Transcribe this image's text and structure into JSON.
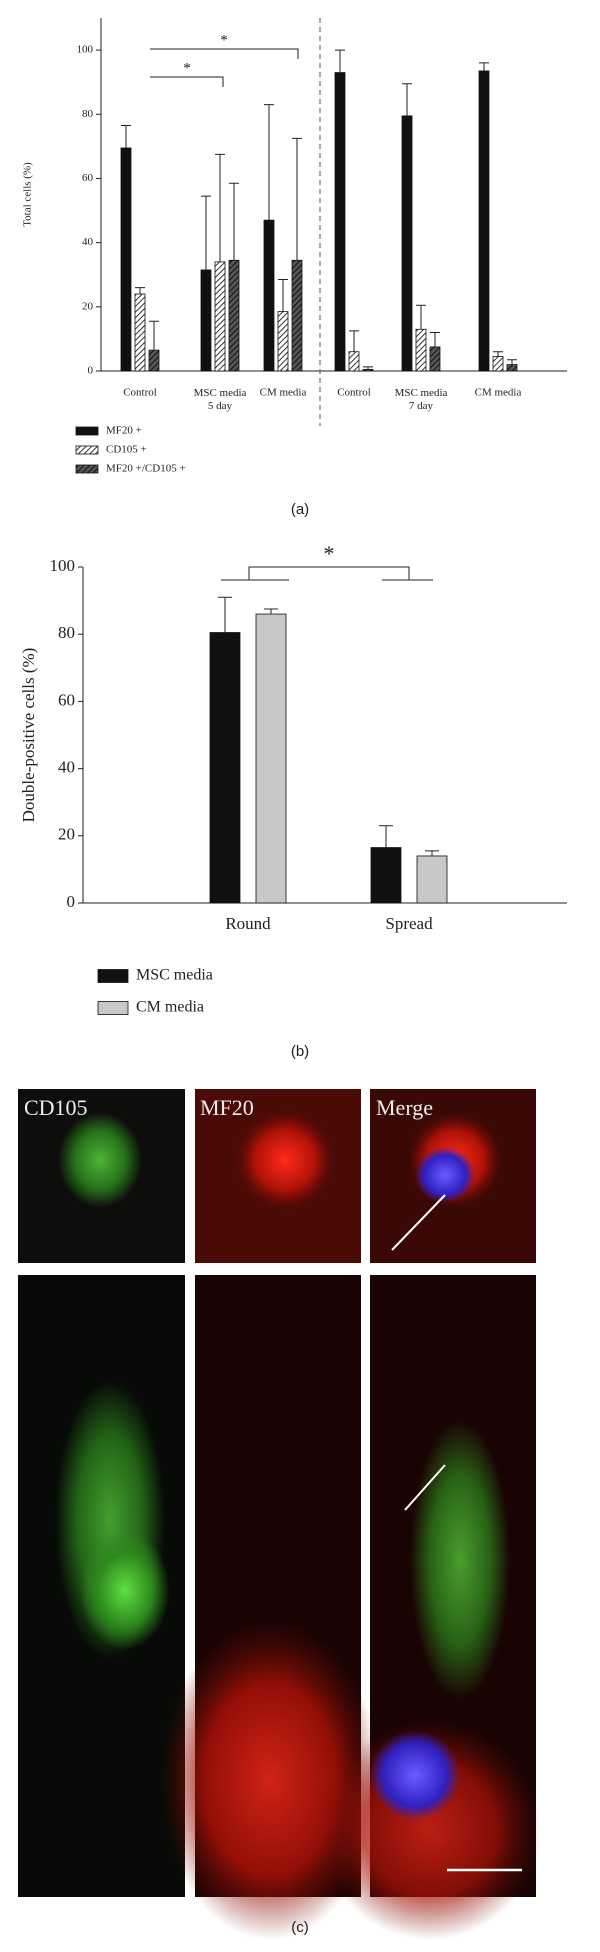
{
  "chart_data": [
    {
      "type": "bar",
      "panel_label": "(a)",
      "y_label": "Total cells (%)",
      "categories": [
        "Control",
        "MSC media\n5 day",
        "CM media",
        "Control",
        "MSC media\n7 day",
        "CM media"
      ],
      "ylim": [
        0,
        110
      ],
      "yticks": [
        0,
        20,
        40,
        60,
        80,
        100
      ],
      "series": [
        {
          "name": "MF20 +",
          "color": "#111111",
          "hatch": false,
          "values": [
            69.5,
            31.5,
            47,
            93,
            79.5,
            93.5
          ],
          "errors": [
            7,
            23,
            36,
            7,
            10,
            2.5
          ]
        },
        {
          "name": "CD105 +",
          "color": "#ffffff",
          "hatch": true,
          "values": [
            24,
            34,
            18.5,
            6,
            13,
            4.5
          ],
          "errors": [
            2,
            33.5,
            10,
            6.5,
            7.5,
            1.5
          ]
        },
        {
          "name": "MF20 +/CD105 +",
          "color": "#555555",
          "hatch": true,
          "values": [
            6.5,
            34.5,
            34.5,
            0.5,
            7.5,
            2
          ],
          "errors": [
            9,
            24,
            38,
            0.8,
            4.5,
            1.5
          ]
        }
      ],
      "annotations": [
        "*",
        "*"
      ]
    },
    {
      "type": "bar",
      "panel_label": "(b)",
      "y_label": "Double-positive cells (%)",
      "categories": [
        "Round",
        "Spread"
      ],
      "ylim": [
        0,
        100
      ],
      "yticks": [
        0,
        20,
        40,
        60,
        80,
        100
      ],
      "series": [
        {
          "name": "MSC media",
          "color": "#111111",
          "hatch": false,
          "values": [
            80.5,
            16.5
          ],
          "errors": [
            10.5,
            6.5
          ]
        },
        {
          "name": "CM media",
          "color": "#c8c8c8",
          "hatch": false,
          "values": [
            86,
            14
          ],
          "errors": [
            1.5,
            1.5
          ]
        }
      ],
      "annotations": [
        "*"
      ]
    }
  ],
  "panel_c": {
    "labels": [
      "CD105",
      "MF20",
      "Merge"
    ],
    "caption": "(c)"
  }
}
